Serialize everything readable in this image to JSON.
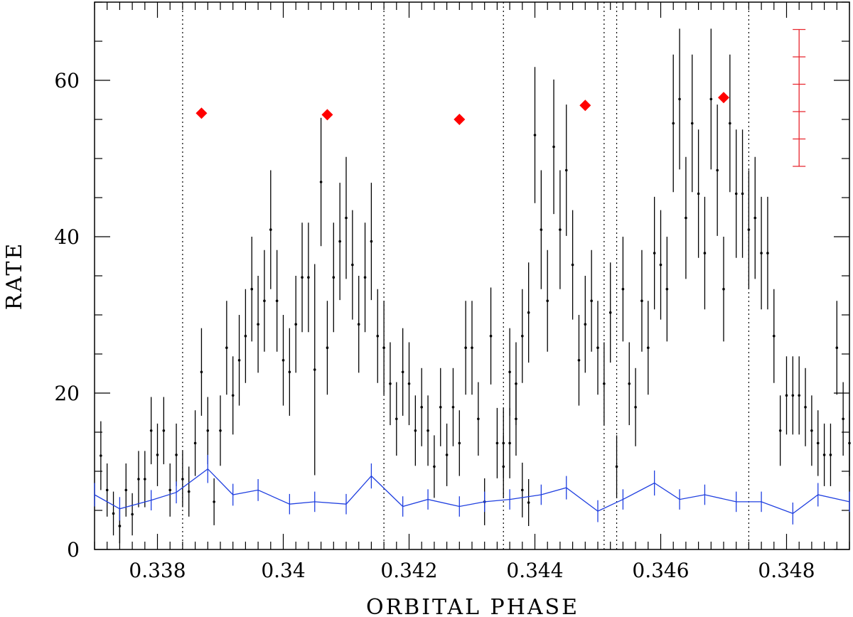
{
  "chart_data": {
    "type": "scatter",
    "xlabel": "ORBITAL PHASE",
    "ylabel": "RATE",
    "xlim": [
      0.337,
      0.349
    ],
    "ylim": [
      0,
      70
    ],
    "x_ticks": [
      0.338,
      0.34,
      0.342,
      0.344,
      0.346,
      0.348
    ],
    "x_tick_labels": [
      "0.338",
      "0.34",
      "0.342",
      "0.344",
      "0.346",
      "0.348"
    ],
    "y_ticks": [
      0,
      20,
      40,
      60
    ],
    "y_tick_labels": [
      "0",
      "20",
      "40",
      "60"
    ],
    "grid": false,
    "vertical_reference_lines": [
      0.3384,
      0.3416,
      0.3435,
      0.3451,
      0.3453,
      0.3474
    ],
    "series": [
      {
        "style": "points-with-error-bars",
        "color": "#000000",
        "points": [
          [
            0.3371,
            12.0,
            4.4
          ],
          [
            0.3372,
            7.6,
            3.4
          ],
          [
            0.3373,
            4.6,
            2.8
          ],
          [
            0.3374,
            3.0,
            2.2
          ],
          [
            0.3374,
            3.0,
            2.2
          ],
          [
            0.3375,
            7.6,
            3.4
          ],
          [
            0.3376,
            4.5,
            2.7
          ],
          [
            0.3377,
            9.0,
            3.6
          ],
          [
            0.3378,
            9.0,
            3.6
          ],
          [
            0.3379,
            15.2,
            4.3
          ],
          [
            0.338,
            12.1,
            4.0
          ],
          [
            0.3381,
            15.2,
            4.3
          ],
          [
            0.3382,
            7.6,
            3.4
          ],
          [
            0.3383,
            12.1,
            4.0
          ],
          [
            0.3384,
            9.0,
            3.6
          ],
          [
            0.3385,
            7.4,
            3.2
          ],
          [
            0.3386,
            13.6,
            4.2
          ],
          [
            0.3387,
            22.7,
            5.6
          ],
          [
            0.3388,
            15.2,
            4.3
          ],
          [
            0.3389,
            6.1,
            3.0
          ],
          [
            0.339,
            15.2,
            4.5
          ],
          [
            0.3391,
            25.8,
            6.0
          ],
          [
            0.3392,
            19.7,
            5.0
          ],
          [
            0.3393,
            24.2,
            5.8
          ],
          [
            0.3394,
            27.3,
            6.0
          ],
          [
            0.3395,
            33.3,
            6.7
          ],
          [
            0.3396,
            28.8,
            6.2
          ],
          [
            0.3397,
            31.8,
            6.5
          ],
          [
            0.3398,
            40.9,
            7.6
          ],
          [
            0.3399,
            31.8,
            6.5
          ],
          [
            0.34,
            24.2,
            5.8
          ],
          [
            0.3401,
            22.7,
            5.6
          ],
          [
            0.3402,
            28.8,
            6.2
          ],
          [
            0.3403,
            34.8,
            7.0
          ],
          [
            0.3404,
            34.8,
            7.0
          ],
          [
            0.3405,
            23.0,
            13.5
          ],
          [
            0.3406,
            47.0,
            8.2
          ],
          [
            0.3407,
            25.8,
            6.0
          ],
          [
            0.3408,
            34.8,
            7.0
          ],
          [
            0.3409,
            39.4,
            7.5
          ],
          [
            0.341,
            42.4,
            7.8
          ],
          [
            0.3411,
            36.4,
            7.0
          ],
          [
            0.3412,
            28.8,
            6.2
          ],
          [
            0.3413,
            34.8,
            7.0
          ],
          [
            0.3414,
            39.4,
            7.5
          ],
          [
            0.3415,
            27.3,
            6.0
          ],
          [
            0.3416,
            25.8,
            6.0
          ],
          [
            0.3417,
            21.2,
            5.3
          ],
          [
            0.3418,
            16.7,
            4.7
          ],
          [
            0.3419,
            22.7,
            5.6
          ],
          [
            0.342,
            21.2,
            5.3
          ],
          [
            0.3421,
            15.2,
            4.5
          ],
          [
            0.3422,
            18.2,
            5.0
          ],
          [
            0.3423,
            15.2,
            4.5
          ],
          [
            0.3424,
            10.6,
            4.0
          ],
          [
            0.3425,
            18.2,
            5.0
          ],
          [
            0.3426,
            12.1,
            4.0
          ],
          [
            0.3427,
            18.2,
            5.0
          ],
          [
            0.3428,
            13.6,
            4.2
          ],
          [
            0.3429,
            25.8,
            6.0
          ],
          [
            0.343,
            25.8,
            6.0
          ],
          [
            0.3431,
            16.7,
            4.7
          ],
          [
            0.3432,
            6.1,
            3.0
          ],
          [
            0.3433,
            27.3,
            6.2
          ],
          [
            0.3434,
            13.6,
            4.5
          ],
          [
            0.3435,
            13.6,
            4.5
          ],
          [
            0.3436,
            13.6,
            4.5
          ],
          [
            0.3437,
            16.7,
            4.7
          ],
          [
            0.3438,
            7.6,
            3.5
          ],
          [
            0.3439,
            6.0,
            3.0
          ],
          [
            0.3435,
            10.6,
            4.0
          ],
          [
            0.3436,
            22.7,
            5.6
          ],
          [
            0.3437,
            21.2,
            5.3
          ],
          [
            0.3438,
            27.3,
            6.0
          ],
          [
            0.3439,
            30.3,
            6.4
          ],
          [
            0.344,
            53.0,
            8.7
          ],
          [
            0.3441,
            40.9,
            7.6
          ],
          [
            0.3442,
            31.8,
            6.5
          ],
          [
            0.3443,
            51.5,
            8.6
          ],
          [
            0.3444,
            40.9,
            7.6
          ],
          [
            0.3445,
            48.5,
            8.4
          ],
          [
            0.3446,
            36.4,
            7.0
          ],
          [
            0.3447,
            24.2,
            5.8
          ],
          [
            0.3448,
            28.8,
            6.2
          ],
          [
            0.3449,
            31.8,
            6.5
          ],
          [
            0.345,
            25.8,
            6.0
          ],
          [
            0.3451,
            21.2,
            5.3
          ],
          [
            0.3452,
            30.3,
            6.4
          ],
          [
            0.3453,
            10.6,
            4.0
          ],
          [
            0.3454,
            33.3,
            6.7
          ],
          [
            0.3455,
            21.2,
            5.3
          ],
          [
            0.3456,
            18.2,
            5.0
          ],
          [
            0.3457,
            31.8,
            6.5
          ],
          [
            0.3458,
            25.8,
            6.0
          ],
          [
            0.3459,
            37.9,
            7.2
          ],
          [
            0.346,
            36.4,
            7.0
          ],
          [
            0.3461,
            33.3,
            6.7
          ],
          [
            0.3462,
            54.5,
            8.8
          ],
          [
            0.3463,
            57.6,
            9.0
          ],
          [
            0.3464,
            42.4,
            7.8
          ],
          [
            0.3465,
            54.5,
            8.8
          ],
          [
            0.3466,
            45.5,
            8.2
          ],
          [
            0.3467,
            37.9,
            7.2
          ],
          [
            0.3468,
            57.6,
            9.0
          ],
          [
            0.3469,
            48.5,
            8.4
          ],
          [
            0.347,
            33.3,
            6.7
          ],
          [
            0.3471,
            54.5,
            8.8
          ],
          [
            0.3472,
            45.5,
            8.2
          ],
          [
            0.3473,
            45.5,
            8.2
          ],
          [
            0.3474,
            40.9,
            7.6
          ],
          [
            0.3475,
            42.4,
            7.8
          ],
          [
            0.3476,
            37.9,
            7.2
          ],
          [
            0.3477,
            37.9,
            7.2
          ],
          [
            0.3478,
            27.3,
            6.0
          ],
          [
            0.3479,
            15.2,
            4.5
          ],
          [
            0.348,
            19.7,
            5.0
          ],
          [
            0.3481,
            19.7,
            5.0
          ],
          [
            0.3482,
            19.7,
            5.0
          ],
          [
            0.3483,
            18.2,
            5.0
          ],
          [
            0.3484,
            15.2,
            4.5
          ],
          [
            0.3485,
            13.6,
            4.2
          ],
          [
            0.3486,
            12.1,
            4.0
          ],
          [
            0.3487,
            12.1,
            4.0
          ],
          [
            0.3488,
            25.8,
            6.0
          ],
          [
            0.3489,
            16.7,
            4.7
          ],
          [
            0.349,
            13.6,
            4.2
          ],
          [
            0.3491,
            12.1,
            4.0
          ],
          [
            0.3492,
            15.2,
            4.5
          ],
          [
            0.3493,
            12.1,
            4.0
          ],
          [
            0.3494,
            7.6,
            3.4
          ],
          [
            0.3495,
            19.7,
            5.0
          ],
          [
            0.3496,
            12.1,
            4.0
          ]
        ]
      },
      {
        "style": "line-with-error-bars",
        "color": "#1f3fe0",
        "points": [
          [
            0.337,
            7.0,
            1.5
          ],
          [
            0.3374,
            5.2,
            1.5
          ],
          [
            0.3379,
            6.3,
            1.3
          ],
          [
            0.3383,
            7.3,
            1.4
          ],
          [
            0.3388,
            10.3,
            1.8
          ],
          [
            0.3392,
            7.0,
            1.4
          ],
          [
            0.3396,
            7.6,
            1.4
          ],
          [
            0.3401,
            5.8,
            1.3
          ],
          [
            0.3405,
            6.1,
            1.3
          ],
          [
            0.341,
            5.8,
            1.3
          ],
          [
            0.3414,
            9.4,
            1.6
          ],
          [
            0.3419,
            5.5,
            1.3
          ],
          [
            0.3423,
            6.4,
            1.3
          ],
          [
            0.3428,
            5.5,
            1.3
          ],
          [
            0.3432,
            6.1,
            1.3
          ],
          [
            0.3436,
            6.4,
            1.3
          ],
          [
            0.3441,
            7.0,
            1.3
          ],
          [
            0.3445,
            7.9,
            1.5
          ],
          [
            0.345,
            4.9,
            1.4
          ],
          [
            0.3454,
            6.4,
            1.3
          ],
          [
            0.3459,
            8.5,
            1.6
          ],
          [
            0.3463,
            6.4,
            1.3
          ],
          [
            0.3467,
            7.0,
            1.3
          ],
          [
            0.3472,
            6.1,
            1.3
          ],
          [
            0.3476,
            6.1,
            1.3
          ],
          [
            0.3481,
            4.6,
            1.4
          ],
          [
            0.3485,
            7.0,
            1.5
          ],
          [
            0.349,
            6.1,
            1.3
          ]
        ]
      },
      {
        "style": "markers",
        "marker": "diamond",
        "color": "#ff0000",
        "points": [
          [
            0.3387,
            55.8
          ],
          [
            0.3407,
            55.6
          ],
          [
            0.3428,
            55.0
          ],
          [
            0.3448,
            56.8
          ],
          [
            0.347,
            57.8
          ]
        ]
      },
      {
        "style": "error-bar-scale",
        "color": "#e8262e",
        "x": 0.3482,
        "ylim": [
          49.0,
          66.5
        ],
        "ticks": [
          49.0,
          52.5,
          56.0,
          59.5,
          63.0,
          66.5
        ]
      }
    ]
  }
}
